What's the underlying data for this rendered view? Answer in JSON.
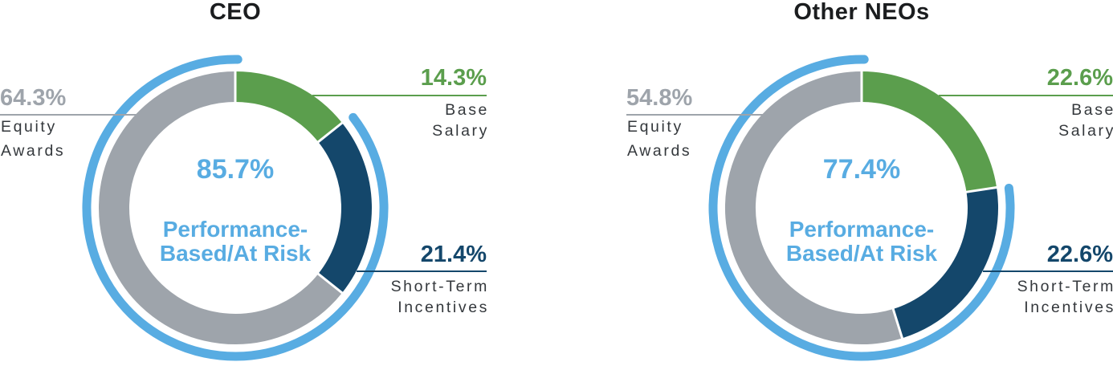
{
  "colors": {
    "green": "#5B9E4D",
    "navy": "#14476B",
    "gray": "#9EA4AB",
    "light_blue": "#58ACE2",
    "label_text": "#34383C",
    "title_text": "#1B1D1F",
    "divider_white": "#FFFFFF"
  },
  "chart_data": [
    {
      "type": "pie",
      "donut": true,
      "title": "CEO",
      "categories": [
        "Base Salary",
        "Short-Term Incentives",
        "Equity Awards"
      ],
      "values": [
        14.3,
        21.4,
        64.3
      ],
      "slice_colors": [
        "#5B9E4D",
        "#14476B",
        "#9EA4AB"
      ],
      "start_angle": "top",
      "direction": "clockwise",
      "legend_position": "none",
      "center": {
        "pct": "85.7%",
        "line1": "Performance-",
        "line2": "Based/At Risk"
      },
      "outer_arc": {
        "pct_value": 85.7,
        "label": "Performance-Based/At Risk",
        "color": "#58ACE2"
      },
      "labels": {
        "equity": {
          "pct": "64.3%",
          "line1": "Equity",
          "line2": "Awards"
        },
        "base": {
          "pct": "14.3%",
          "line1": "Base",
          "line2": "Salary"
        },
        "sti": {
          "pct": "21.4%",
          "line1": "Short-Term",
          "line2": "Incentives"
        }
      }
    },
    {
      "type": "pie",
      "donut": true,
      "title": "Other NEOs",
      "categories": [
        "Base Salary",
        "Short-Term Incentives",
        "Equity Awards"
      ],
      "values": [
        22.6,
        22.6,
        54.8
      ],
      "slice_colors": [
        "#5B9E4D",
        "#14476B",
        "#9EA4AB"
      ],
      "start_angle": "top",
      "direction": "clockwise",
      "legend_position": "none",
      "center": {
        "pct": "77.4%",
        "line1": "Performance-",
        "line2": "Based/At Risk"
      },
      "outer_arc": {
        "pct_value": 77.4,
        "label": "Performance-Based/At Risk",
        "color": "#58ACE2"
      },
      "labels": {
        "equity": {
          "pct": "54.8%",
          "line1": "Equity",
          "line2": "Awards"
        },
        "base": {
          "pct": "22.6%",
          "line1": "Base",
          "line2": "Salary"
        },
        "sti": {
          "pct": "22.6%",
          "line1": "Short-Term",
          "line2": "Incentives"
        }
      }
    }
  ]
}
